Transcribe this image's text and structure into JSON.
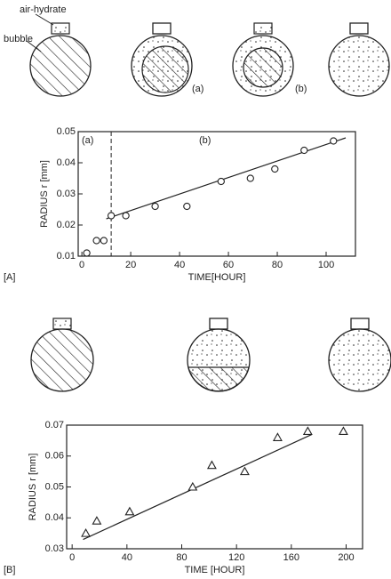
{
  "figure": {
    "air_hydrate": "air-hydrate",
    "bubble": "bubble",
    "stage_a": "(a)",
    "stage_b": "(b)"
  },
  "chart_data": [
    {
      "type": "scatter",
      "panel": "[A]",
      "ylabel": "RADIUS  r [mm]",
      "xlabel": "TIME[HOUR]",
      "marker": "circle",
      "x": [
        2,
        6,
        9,
        12,
        18,
        30,
        43,
        57,
        69,
        79,
        91,
        103
      ],
      "values": [
        0.011,
        0.015,
        0.015,
        0.023,
        0.023,
        0.026,
        0.026,
        0.034,
        0.035,
        0.038,
        0.044,
        0.047
      ],
      "fit": {
        "x": [
          10,
          108
        ],
        "values": [
          0.022,
          0.048
        ]
      },
      "divider_x": 12,
      "annotations": [
        "(a)",
        "(b)"
      ],
      "xlim": [
        -1.5,
        112
      ],
      "xticks": [
        0,
        20,
        40,
        60,
        80,
        100
      ],
      "ylim": [
        0.01,
        0.05
      ],
      "yticks": [
        0.01,
        0.02,
        0.03,
        0.04,
        0.05
      ]
    },
    {
      "type": "scatter",
      "panel": "[B]",
      "ylabel": "RADIUS  r [mm]",
      "xlabel": "TIME [HOUR]",
      "marker": "triangle",
      "x": [
        10,
        18,
        42,
        88,
        102,
        126,
        150,
        172,
        198
      ],
      "values": [
        0.035,
        0.039,
        0.042,
        0.05,
        0.057,
        0.055,
        0.066,
        0.068,
        0.068
      ],
      "fit": {
        "x": [
          8,
          175
        ],
        "values": [
          0.033,
          0.067
        ]
      },
      "xlim": [
        -4,
        212
      ],
      "xticks": [
        0,
        40,
        80,
        120,
        160,
        200
      ],
      "ylim": [
        0.03,
        0.07
      ],
      "yticks": [
        0.03,
        0.04,
        0.05,
        0.06,
        0.07
      ]
    }
  ]
}
